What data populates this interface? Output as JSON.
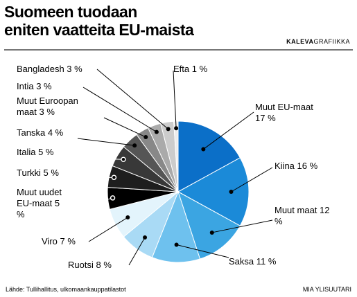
{
  "chart_data": {
    "type": "pie",
    "title": [
      "Suomeen tuodaan",
      "eniten vaatteita EU-maista"
    ],
    "brand": "KALEVA",
    "brand_suffix": "GRAFIIKKA",
    "source": "Lähde: Tullihallitus, ulkomaankauppatilastot",
    "author": "MIA YLISUUTARI",
    "categories": [
      "Muut EU-maat",
      "Kiina",
      "Muut maat",
      "Saksa",
      "Ruotsi",
      "Viro",
      "Muut uudet EU-maat",
      "Turkki",
      "Italia",
      "Tanska",
      "Muut Euroopan maat",
      "Intia",
      "Bangladesh",
      "Efta"
    ],
    "values": [
      17,
      16,
      12,
      11,
      8,
      7,
      5,
      5,
      5,
      4,
      3,
      3,
      3,
      1
    ],
    "value_labels": [
      "17 %",
      "16 %",
      "12 %",
      "11 %",
      "8 %",
      "7 %",
      "5 %",
      "5 %",
      "5 %",
      "4 %",
      "3 %",
      "3 %",
      "3 %",
      "1 %"
    ],
    "colors": [
      "#0b6fc8",
      "#1b8ad8",
      "#3ba5e2",
      "#6ec1ee",
      "#a9daf5",
      "#e3f4fc",
      "#000000",
      "#1e1e1e",
      "#383838",
      "#555555",
      "#888888",
      "#aaaaaa",
      "#cccccc",
      "#ececec"
    ]
  }
}
